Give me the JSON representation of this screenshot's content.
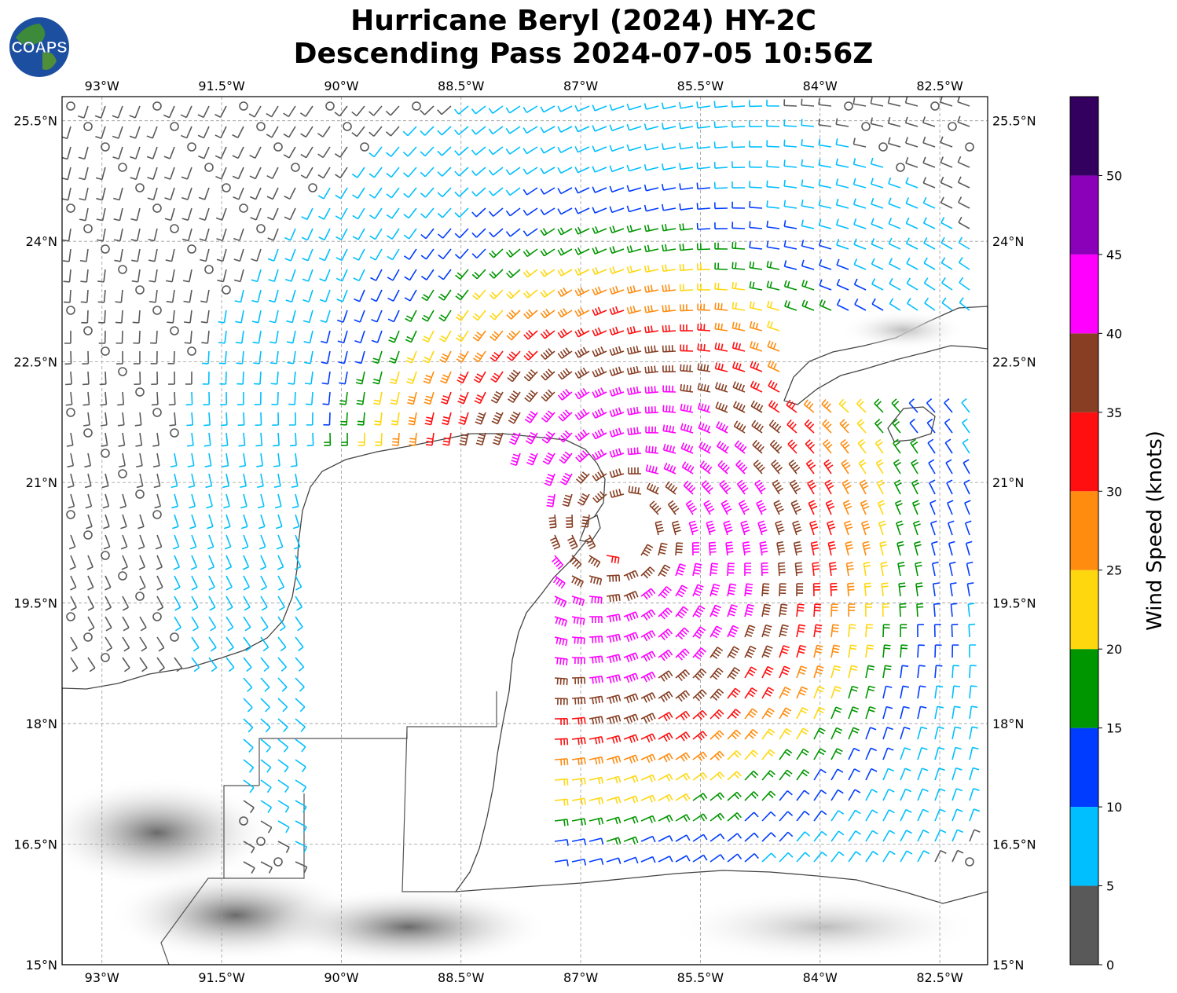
{
  "header": {
    "title_line1": "Hurricane Beryl (2024) HY-2C",
    "title_line2": "Descending Pass 2024-07-05 10:56Z",
    "logo_text": "COAPS"
  },
  "map": {
    "lon_range": [
      -93.5,
      -81.9
    ],
    "lat_range": [
      15.0,
      25.8
    ],
    "lon_ticks": [
      {
        "value": -93.0,
        "label": "93°W"
      },
      {
        "value": -91.5,
        "label": "91.5°W"
      },
      {
        "value": -90.0,
        "label": "90°W"
      },
      {
        "value": -88.5,
        "label": "88.5°W"
      },
      {
        "value": -87.0,
        "label": "87°W"
      },
      {
        "value": -85.5,
        "label": "85.5°W"
      },
      {
        "value": -84.0,
        "label": "84°W"
      },
      {
        "value": -82.5,
        "label": "82.5°W"
      }
    ],
    "lat_ticks": [
      {
        "value": 25.5,
        "label": "25.5°N"
      },
      {
        "value": 24.0,
        "label": "24°N"
      },
      {
        "value": 22.5,
        "label": "22.5°N"
      },
      {
        "value": 21.0,
        "label": "21°N"
      },
      {
        "value": 19.5,
        "label": "19.5°N"
      },
      {
        "value": 18.0,
        "label": "18°N"
      },
      {
        "value": 16.5,
        "label": "16.5°N"
      },
      {
        "value": 15.0,
        "label": "15°N"
      }
    ],
    "grid": true,
    "storm_center": {
      "lon": -86.5,
      "lat": 20.4
    }
  },
  "colorbar": {
    "title": "Wind Speed (knots)",
    "ticks": [
      "0",
      "5",
      "10",
      "15",
      "20",
      "25",
      "30",
      "35",
      "40",
      "45",
      "50"
    ],
    "bins": [
      {
        "min": 0,
        "max": 5,
        "color": "#595959"
      },
      {
        "min": 5,
        "max": 10,
        "color": "#00bfff"
      },
      {
        "min": 10,
        "max": 15,
        "color": "#003cff"
      },
      {
        "min": 15,
        "max": 20,
        "color": "#009600"
      },
      {
        "min": 20,
        "max": 25,
        "color": "#ffd70f"
      },
      {
        "min": 25,
        "max": 30,
        "color": "#ff8c0f"
      },
      {
        "min": 30,
        "max": 35,
        "color": "#ff0f0f"
      },
      {
        "min": 35,
        "max": 40,
        "color": "#873e23"
      },
      {
        "min": 40,
        "max": 45,
        "color": "#ff00ff"
      },
      {
        "min": 45,
        "max": 50,
        "color": "#8b00b9"
      },
      {
        "min": 50,
        "max": 55,
        "color": "#33005f"
      }
    ]
  }
}
